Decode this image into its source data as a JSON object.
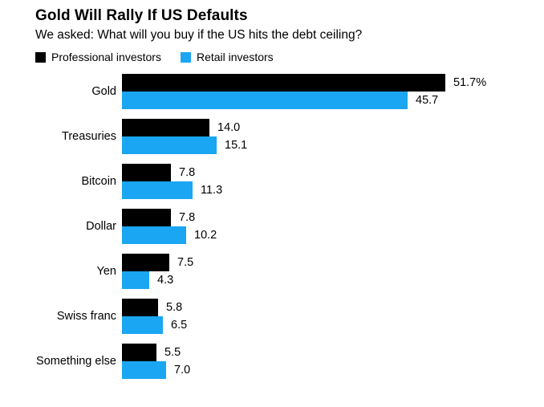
{
  "header": {
    "title": "Gold Will Rally If US Defaults",
    "subtitle": "We asked: What will you buy if the US hits the debt ceiling?"
  },
  "legend": [
    {
      "label": "Professional investors",
      "color": "#000000"
    },
    {
      "label": "Retail investors",
      "color": "#1AA6F2"
    }
  ],
  "chart_data": {
    "type": "bar",
    "orientation": "horizontal",
    "title": "Gold Will Rally If US Defaults",
    "subtitle": "We asked: What will you buy if the US hits the debt ceiling?",
    "categories": [
      "Gold",
      "Treasuries",
      "Bitcoin",
      "Dollar",
      "Yen",
      "Swiss franc",
      "Something else"
    ],
    "series": [
      {
        "name": "Professional investors",
        "color": "#000000",
        "values": [
          51.7,
          14.0,
          7.8,
          7.8,
          7.5,
          5.8,
          5.5
        ],
        "labels": [
          "51.7%",
          "14.0",
          "7.8",
          "7.8",
          "7.5",
          "5.8",
          "5.5"
        ]
      },
      {
        "name": "Retail investors",
        "color": "#1AA6F2",
        "values": [
          45.7,
          15.1,
          11.3,
          10.2,
          4.3,
          6.5,
          7.0
        ],
        "labels": [
          "45.7",
          "15.1",
          "11.3",
          "10.2",
          "4.3",
          "6.5",
          "7.0"
        ]
      }
    ],
    "value_unit": "%",
    "xlim": [
      0,
      55
    ],
    "grid": false,
    "legend_position": "top",
    "value_labels": "outside-end"
  }
}
